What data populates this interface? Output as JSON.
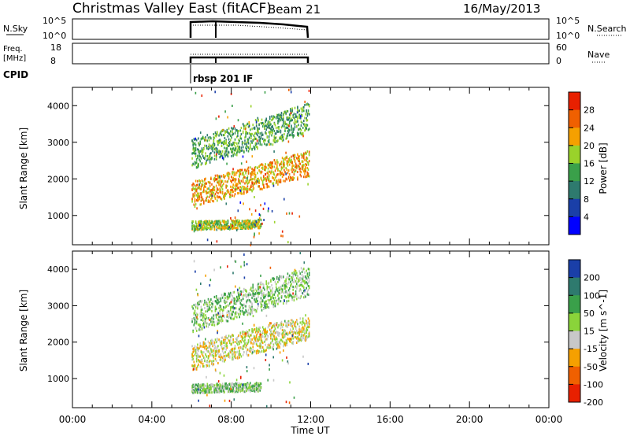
{
  "header": {
    "title": "Christmas Valley East (fitACF)",
    "beam": "Beam 21",
    "date": "16/May/2013"
  },
  "status_panels": {
    "nsky_label": "N.Sky",
    "nsky_ticks": [
      "10^5",
      "10^0"
    ],
    "nsearch_label": "N.Search",
    "freq_label_1": "Freq.",
    "freq_label_2": "[MHz]",
    "freq_ticks": [
      "18",
      "8"
    ],
    "nave_ticks": [
      "60",
      "0"
    ],
    "nave_label": "Nave",
    "cpid_label": "CPID",
    "cpid_value": "rbsp 201 IF"
  },
  "chart_data": [
    {
      "type": "heatmap",
      "name": "power",
      "ylabel": "Slant Range [km]",
      "ylim": [
        200,
        4500
      ],
      "yticks": [
        1000,
        2000,
        3000,
        4000
      ],
      "xlim": [
        0,
        24
      ],
      "colorbar_label": "Power [dB]",
      "colorbar_ticks": [
        "4",
        "8",
        "12",
        "16",
        "20",
        "24",
        "28"
      ],
      "colors": [
        "#0000ff",
        "#1a3fa8",
        "#2e7a6e",
        "#3aa04a",
        "#9ad22a",
        "#f5a000",
        "#f06000",
        "#e82000"
      ],
      "bands": [
        {
          "t0": 6.0,
          "t1": 11.9,
          "r0": 1600,
          "r1": 2450,
          "slope": 350,
          "level": 5,
          "thick": 350
        },
        {
          "t0": 6.0,
          "t1": 11.9,
          "r0": 2700,
          "r1": 3700,
          "slope": 0,
          "level": 3,
          "thick": 400
        },
        {
          "t0": 6.0,
          "t1": 9.5,
          "r0": 750,
          "r1": 800,
          "slope": 0,
          "level": 4,
          "thick": 120
        }
      ]
    },
    {
      "type": "heatmap",
      "name": "velocity",
      "ylabel": "Slant Range [km]",
      "ylim": [
        200,
        4500
      ],
      "yticks": [
        1000,
        2000,
        3000,
        4000
      ],
      "xlim": [
        0,
        24
      ],
      "colorbar_label": "Velocity [m s^-1]",
      "colorbar_ticks": [
        "200",
        "100",
        "50",
        "15",
        "-15",
        "-50",
        "-100",
        "-200"
      ],
      "colors": [
        "#1a3fa8",
        "#2e7a6e",
        "#3aa04a",
        "#8ad43a",
        "#c8c8c8",
        "#f5a000",
        "#f06000",
        "#e82000"
      ],
      "bands": [
        {
          "t0": 6.0,
          "t1": 11.9,
          "r0": 1600,
          "r1": 2450,
          "slope": 350,
          "level": 4,
          "thick": 350
        },
        {
          "t0": 6.0,
          "t1": 11.9,
          "r0": 2700,
          "r1": 3700,
          "slope": 0,
          "level": 3,
          "thick": 400
        },
        {
          "t0": 6.0,
          "t1": 9.5,
          "r0": 750,
          "r1": 800,
          "slope": 0,
          "level": 3,
          "thick": 120
        }
      ]
    }
  ],
  "xaxis": {
    "label": "Time UT",
    "ticks": [
      "00:00",
      "04:00",
      "08:00",
      "12:00",
      "16:00",
      "20:00",
      "00:00"
    ],
    "tick_hours": [
      0,
      4,
      8,
      12,
      16,
      20,
      24
    ]
  }
}
